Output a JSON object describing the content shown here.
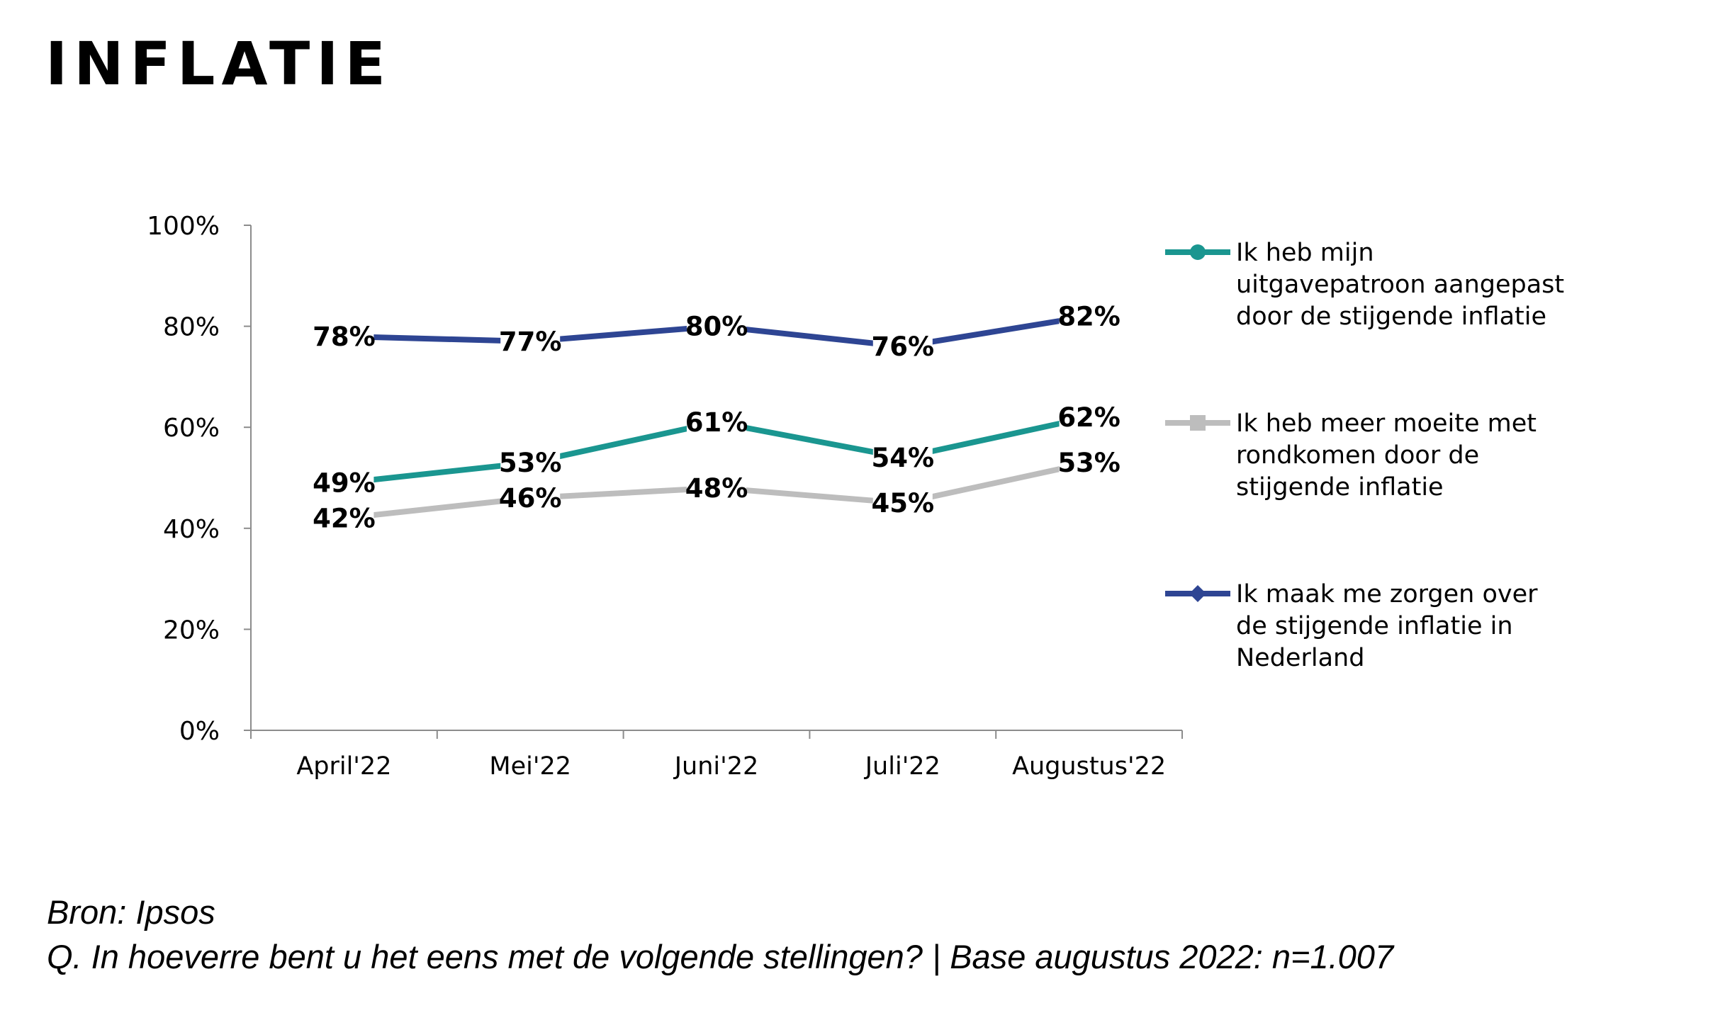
{
  "title": "INFLATIE",
  "footnotes": {
    "source": "Bron: Ipsos",
    "question": "Q. In hoeverre bent u het eens met de volgende stellingen? | Base augustus 2022: n=1.007"
  },
  "chart_data": {
    "type": "line",
    "categories": [
      "April'22",
      "Mei'22",
      "Juni'22",
      "Juli'22",
      "Augustus'22"
    ],
    "ylim": [
      0,
      100
    ],
    "yticks": [
      "0%",
      "20%",
      "40%",
      "60%",
      "80%",
      "100%"
    ],
    "grid": false,
    "legend_position": "right",
    "series": [
      {
        "name": "Ik heb mijn uitgavepatroon aangepast door de stijgende inflatie",
        "legend_lines": [
          "Ik heb mijn",
          "uitgavepatroon aangepast",
          "door de stijgende inflatie"
        ],
        "values": [
          49,
          53,
          61,
          54,
          62
        ],
        "labels": [
          "49%",
          "53%",
          "61%",
          "54%",
          "62%"
        ],
        "color": "#1A9690",
        "marker": "circle"
      },
      {
        "name": "Ik heb meer moeite met rondkomen door de stijgende inflatie",
        "legend_lines": [
          "Ik heb meer moeite met",
          "rondkomen door de",
          "stijgende inflatie"
        ],
        "values": [
          42,
          46,
          48,
          45,
          53
        ],
        "labels": [
          "42%",
          "46%",
          "48%",
          "45%",
          "53%"
        ],
        "color": "#BDBDBD",
        "marker": "square"
      },
      {
        "name": "Ik maak me zorgen over de stijgende inflatie in Nederland",
        "legend_lines": [
          "Ik maak me zorgen over",
          "de stijgende inflatie in",
          "Nederland"
        ],
        "values": [
          78,
          77,
          80,
          76,
          82
        ],
        "labels": [
          "78%",
          "77%",
          "80%",
          "76%",
          "82%"
        ],
        "color": "#2E4593",
        "marker": "diamond"
      }
    ]
  }
}
